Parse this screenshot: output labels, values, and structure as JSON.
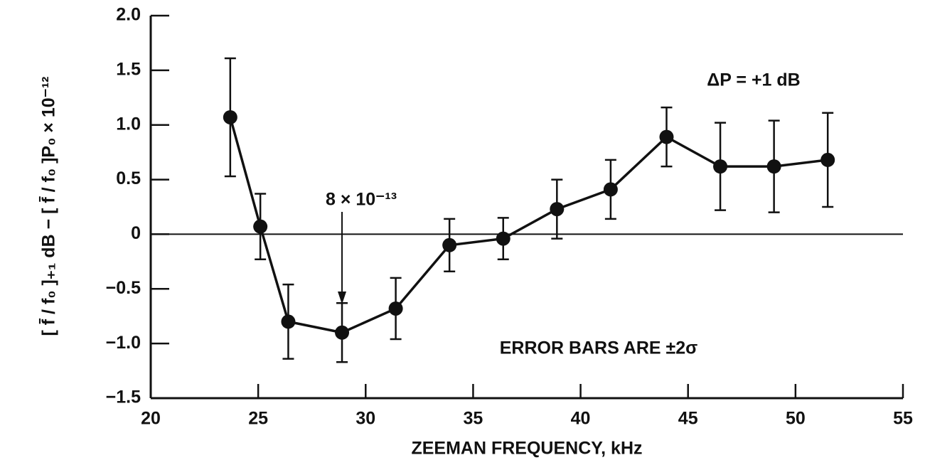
{
  "chart_data": {
    "type": "line",
    "x_label": "ZEEMAN FREQUENCY, kHz",
    "y_label": "[ f̄ / f₀ ]₊₁ dB − [ f̄ / f₀ ]P₀ × 10⁻¹²",
    "annotations": [
      "ΔP = +1 dB",
      "8 × 10⁻¹³",
      "ERROR BARS ARE ±2σ"
    ],
    "x": [
      23.7,
      25.1,
      26.4,
      28.9,
      31.4,
      33.9,
      36.4,
      38.9,
      41.4,
      44.0,
      46.5,
      49.0,
      51.5
    ],
    "values": [
      1.07,
      0.07,
      -0.8,
      -0.9,
      -0.68,
      -0.1,
      -0.04,
      0.23,
      0.41,
      0.89,
      0.62,
      0.62,
      0.68
    ],
    "errors": [
      0.54,
      0.3,
      0.34,
      0.27,
      0.28,
      0.24,
      0.19,
      0.27,
      0.27,
      0.27,
      0.4,
      0.42,
      0.43
    ],
    "color": "#111111",
    "xlim": [
      20,
      55
    ],
    "xticks": [
      20,
      25,
      30,
      35,
      40,
      45,
      50,
      55
    ],
    "ylim": [
      -1.5,
      2.0
    ],
    "yticks": [
      {
        "value": -1.5,
        "label": "−1.5"
      },
      {
        "value": -1.0,
        "label": "−1.0"
      },
      {
        "value": -0.5,
        "label": "−0.5"
      },
      0,
      {
        "value": 0.5,
        "label": "0.5"
      },
      {
        "value": 1.0,
        "label": "1.0"
      },
      {
        "value": 1.5,
        "label": "1.5"
      },
      {
        "value": 2.0,
        "label": "2.0"
      }
    ],
    "zero_line": true
  }
}
